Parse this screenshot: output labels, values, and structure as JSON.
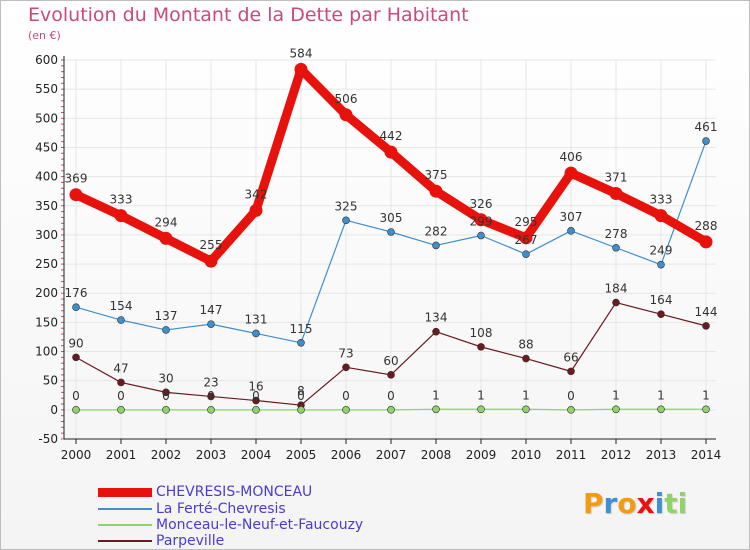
{
  "page": {
    "title": "Evolution du Montant de la Dette par Habitant",
    "unit": "(en €)",
    "logo": "Proxiti"
  },
  "colors": {
    "title": "#c94a7e",
    "legend_text": "#4a3bd1",
    "axis": "#222222",
    "grid": "#e6e6e6"
  },
  "chart_data": {
    "type": "line",
    "title": "Evolution du Montant de la Dette par Habitant",
    "ylabel": "(en €)",
    "xlabel": "",
    "ylim": [
      -50,
      600
    ],
    "yticks": [
      -50,
      0,
      50,
      100,
      150,
      200,
      250,
      300,
      350,
      400,
      450,
      500,
      550,
      600
    ],
    "x": [
      "2000",
      "2001",
      "2002",
      "2003",
      "2004",
      "2005",
      "2006",
      "2007",
      "2008",
      "2009",
      "2010",
      "2011",
      "2012",
      "2013",
      "2014"
    ],
    "legend_position": "bottom-left",
    "grid": true,
    "series": [
      {
        "name": "CHEVRESIS-MONCEAU",
        "color": "#e8120c",
        "values": [
          369,
          333,
          294,
          255,
          342,
          584,
          506,
          442,
          375,
          326,
          295,
          406,
          371,
          333,
          288
        ]
      },
      {
        "name": "La Ferté-Chevresis",
        "color": "#3d8fce",
        "values": [
          176,
          154,
          137,
          147,
          131,
          115,
          325,
          305,
          282,
          299,
          267,
          307,
          278,
          249,
          461
        ]
      },
      {
        "name": "Monceau-le-Neuf-et-Faucouzy",
        "color": "#8fd36a",
        "values": [
          0,
          0,
          0,
          0,
          0,
          0,
          0,
          0,
          1,
          1,
          1,
          0,
          1,
          1,
          1
        ]
      },
      {
        "name": "Parpeville",
        "color": "#6b1a1f",
        "values": [
          90,
          47,
          30,
          23,
          16,
          8,
          73,
          60,
          134,
          108,
          88,
          66,
          184,
          164,
          144
        ]
      }
    ]
  }
}
